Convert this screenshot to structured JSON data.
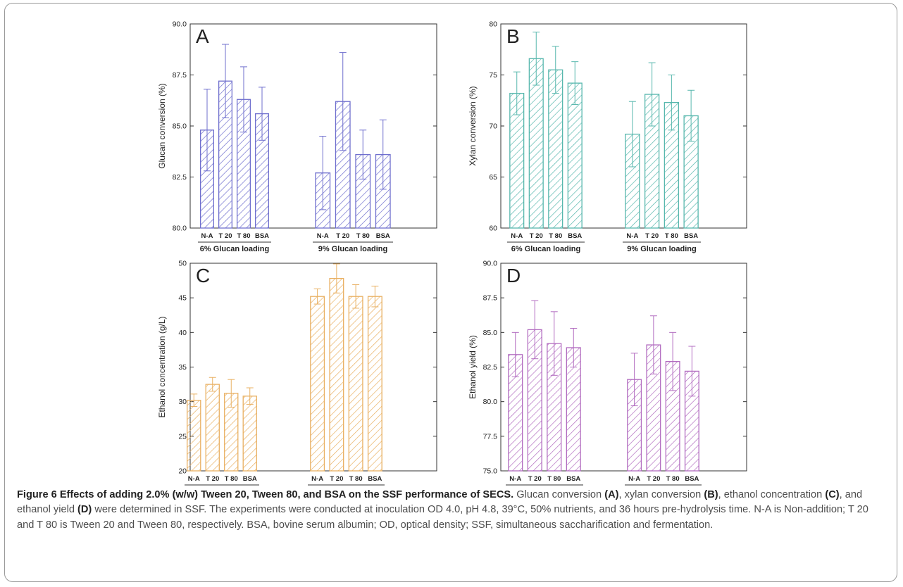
{
  "chart_data": [
    {
      "type": "bar",
      "panel_label": "A",
      "ylabel": "Glucan conversion (%)",
      "ylim": [
        80.0,
        90.0
      ],
      "yticks": [
        "80.0",
        "82.5",
        "85.0",
        "87.5",
        "90.0"
      ],
      "color": "#6f6fce",
      "groups": [
        {
          "label": "6% Glucan loading",
          "categories": [
            "N-A",
            "T 20",
            "T 80",
            "BSA"
          ],
          "values": [
            84.8,
            87.2,
            86.3,
            85.6
          ],
          "errors": [
            2.0,
            1.8,
            1.6,
            1.3
          ]
        },
        {
          "label": "9% Glucan loading",
          "categories": [
            "N-A",
            "T 20",
            "T 80",
            "BSA"
          ],
          "values": [
            82.7,
            86.2,
            83.6,
            83.6
          ],
          "errors": [
            1.8,
            2.4,
            1.2,
            1.7
          ]
        }
      ]
    },
    {
      "type": "bar",
      "panel_label": "B",
      "ylabel": "Xylan conversion (%)",
      "ylim": [
        60,
        80
      ],
      "yticks": [
        "60",
        "65",
        "70",
        "75",
        "80"
      ],
      "color": "#57b7ad",
      "groups": [
        {
          "label": "6% Glucan loading",
          "categories": [
            "N-A",
            "T 20",
            "T 80",
            "BSA"
          ],
          "values": [
            73.2,
            76.6,
            75.5,
            74.2
          ],
          "errors": [
            2.1,
            2.6,
            2.3,
            2.1
          ]
        },
        {
          "label": "9% Glucan loading",
          "categories": [
            "N-A",
            "T 20",
            "T 80",
            "BSA"
          ],
          "values": [
            69.2,
            73.1,
            72.3,
            71.0
          ],
          "errors": [
            3.2,
            3.1,
            2.7,
            2.5
          ]
        }
      ]
    },
    {
      "type": "bar",
      "panel_label": "C",
      "ylabel": "Ethanol concentration (g/L)",
      "ylim": [
        20,
        50
      ],
      "yticks": [
        "20",
        "25",
        "30",
        "35",
        "40",
        "45",
        "50"
      ],
      "color": "#e9b062",
      "groups": [
        {
          "label": "6% Glucan loading",
          "categories": [
            "N-A",
            "T 20",
            "T 80",
            "BSA"
          ],
          "values": [
            30.2,
            32.5,
            31.2,
            30.8
          ],
          "errors": [
            0.9,
            1.0,
            2.0,
            1.2
          ]
        },
        {
          "label": "9% Glucan loading",
          "categories": [
            "N-A",
            "T 20",
            "T 80",
            "BSA"
          ],
          "values": [
            45.2,
            47.8,
            45.2,
            45.2
          ],
          "errors": [
            1.1,
            2.1,
            1.7,
            1.5
          ]
        }
      ]
    },
    {
      "type": "bar",
      "panel_label": "D",
      "ylabel": "Ethanol yield (%)",
      "ylim": [
        75.0,
        90.0
      ],
      "yticks": [
        "75.0",
        "77.5",
        "80.0",
        "82.5",
        "85.0",
        "87.5",
        "90.0"
      ],
      "color": "#b26cc0",
      "groups": [
        {
          "label": "6% Glucan loading",
          "categories": [
            "N-A",
            "T 20",
            "T 80",
            "BSA"
          ],
          "values": [
            83.4,
            85.2,
            84.2,
            83.9
          ],
          "errors": [
            1.6,
            2.1,
            2.3,
            1.4
          ]
        },
        {
          "label": "9% glucan Loading",
          "categories": [
            "N-A",
            "T 20",
            "T 80",
            "BSA"
          ],
          "values": [
            81.6,
            84.1,
            82.9,
            82.2
          ],
          "errors": [
            1.9,
            2.1,
            2.1,
            1.8
          ]
        }
      ]
    }
  ],
  "caption": {
    "title": "Figure 6 Effects of adding 2.0% (w/w) Tween 20, Tween 80, and BSA on the SSF performance of SECS.",
    "parts": [
      {
        "text": " Glucan conversion ",
        "bold": false
      },
      {
        "text": "(A)",
        "bold": true
      },
      {
        "text": ", xylan conversion ",
        "bold": false
      },
      {
        "text": "(B)",
        "bold": true
      },
      {
        "text": ", ethanol concentration ",
        "bold": false
      },
      {
        "text": "(C)",
        "bold": true
      },
      {
        "text": ", and ethanol yield ",
        "bold": false
      },
      {
        "text": "(D)",
        "bold": true
      },
      {
        "text": " were determined in SSF. The experiments were conducted at inoculation OD 4.0, pH 4.8, 39°C, 50% nutrients, and 36 hours pre-hydrolysis time. N-A is Non-addition; T 20 and T 80 is Tween 20 and Tween 80, respectively. BSA, bovine serum albumin; OD, optical density; SSF, simultaneous saccharification and fermentation.",
        "bold": false
      }
    ]
  }
}
